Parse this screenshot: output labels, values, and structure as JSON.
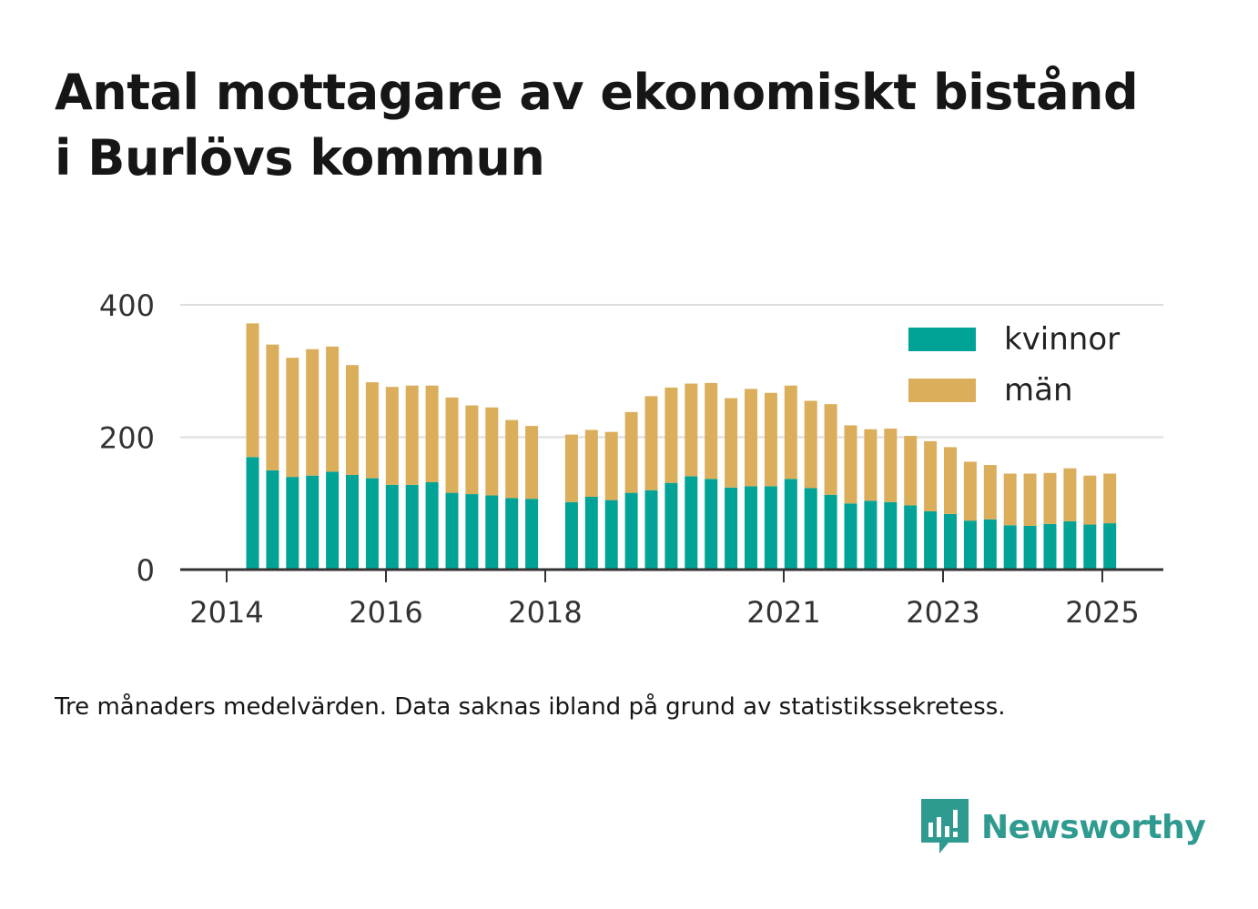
{
  "title_lines": [
    "Antal mottagare av ekonomiskt bistånd",
    "i Burlövs kommun"
  ],
  "footnote": "Tre månaders medelvärden. Data saknas ibland på grund av statistikssekretess.",
  "brand": {
    "name": "Newsworthy",
    "logo_icon": "newsworthy-bar-chart-logo-icon",
    "color": "#2f9a8f"
  },
  "chart_data": {
    "type": "bar",
    "stacked": true,
    "x_ticks": [
      "2014",
      "2016",
      "2018",
      "2021",
      "2023",
      "2025"
    ],
    "y_ticks": [
      "0",
      "200",
      "400"
    ],
    "ylim": [
      0,
      400
    ],
    "grid": true,
    "legend_position": "top-right",
    "series": [
      {
        "name": "kvinnor",
        "color": "#00a395",
        "values": [
          170,
          150,
          140,
          142,
          148,
          143,
          138,
          128,
          128,
          132,
          116,
          114,
          112,
          108,
          107,
          null,
          102,
          110,
          105,
          116,
          120,
          131,
          141,
          137,
          124,
          126,
          126,
          137,
          123,
          113,
          100,
          104,
          102,
          97,
          88,
          84,
          74,
          76,
          67,
          66,
          69,
          73,
          68,
          70
        ]
      },
      {
        "name": "män",
        "color": "#dbae5c",
        "values": [
          202,
          190,
          180,
          191,
          189,
          166,
          145,
          148,
          150,
          146,
          144,
          134,
          133,
          118,
          110,
          null,
          102,
          101,
          103,
          122,
          142,
          144,
          140,
          145,
          135,
          147,
          141,
          141,
          132,
          137,
          118,
          108,
          111,
          105,
          106,
          101,
          89,
          82,
          78,
          79,
          77,
          80,
          74,
          75
        ]
      }
    ]
  }
}
